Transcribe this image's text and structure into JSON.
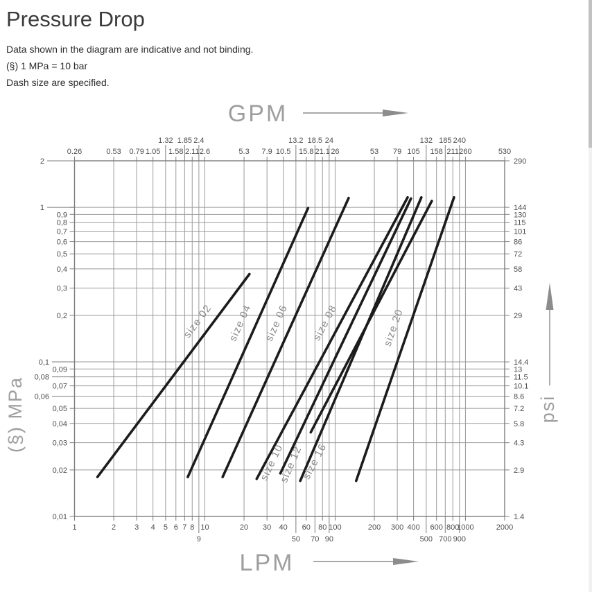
{
  "header": {
    "title": "Pressure Drop",
    "notes": [
      "Data shown in the diagram are indicative and not binding.",
      "(§) 1 MPa = 10 bar",
      "Dash size are specified."
    ]
  },
  "chart_data": {
    "type": "line",
    "x_scale": "log",
    "y_scale": "log",
    "x_range": [
      1,
      2000
    ],
    "y_range": [
      0.01,
      2
    ],
    "grid": true,
    "axes": {
      "bottom": {
        "label": "LPM",
        "ticks": [
          {
            "v": 1,
            "t": "1"
          },
          {
            "v": 2,
            "t": "2"
          },
          {
            "v": 3,
            "t": "3"
          },
          {
            "v": 4,
            "t": "4"
          },
          {
            "v": 5,
            "t": "5"
          },
          {
            "v": 6,
            "t": "6"
          },
          {
            "v": 7,
            "t": "7"
          },
          {
            "v": 8,
            "t": "8"
          },
          {
            "v": 9,
            "t": "9",
            "row": 1
          },
          {
            "v": 10,
            "t": "10"
          },
          {
            "v": 20,
            "t": "20"
          },
          {
            "v": 30,
            "t": "30"
          },
          {
            "v": 40,
            "t": "40"
          },
          {
            "v": 50,
            "t": "50",
            "row": 1
          },
          {
            "v": 60,
            "t": "60"
          },
          {
            "v": 70,
            "t": "70",
            "row": 1
          },
          {
            "v": 80,
            "t": "80"
          },
          {
            "v": 90,
            "t": "90",
            "row": 1
          },
          {
            "v": 100,
            "t": "100"
          },
          {
            "v": 200,
            "t": "200"
          },
          {
            "v": 300,
            "t": "300"
          },
          {
            "v": 400,
            "t": "400"
          },
          {
            "v": 500,
            "t": "500",
            "row": 1
          },
          {
            "v": 600,
            "t": "600"
          },
          {
            "v": 700,
            "t": "700",
            "row": 1
          },
          {
            "v": 800,
            "t": "800"
          },
          {
            "v": 900,
            "t": "900",
            "row": 1
          },
          {
            "v": 1000,
            "t": "1000"
          },
          {
            "v": 2000,
            "t": "2000"
          }
        ]
      },
      "top": {
        "label": "GPM",
        "ticks": [
          {
            "v": 1,
            "t": "0.26"
          },
          {
            "v": 2,
            "t": "0.53"
          },
          {
            "v": 3,
            "t": "0.79"
          },
          {
            "v": 4,
            "t": "1.05"
          },
          {
            "v": 5,
            "t": "1.32",
            "row": 1
          },
          {
            "v": 6,
            "t": "1.58"
          },
          {
            "v": 7,
            "t": "1.85",
            "row": 1
          },
          {
            "v": 8,
            "t": "2.11"
          },
          {
            "v": 9,
            "t": "2.4",
            "row": 1
          },
          {
            "v": 10,
            "t": "2.6"
          },
          {
            "v": 20,
            "t": "5.3"
          },
          {
            "v": 30,
            "t": "7.9"
          },
          {
            "v": 40,
            "t": "10.5"
          },
          {
            "v": 50,
            "t": "13.2",
            "row": 1
          },
          {
            "v": 60,
            "t": "15.8"
          },
          {
            "v": 70,
            "t": "18.5",
            "row": 1
          },
          {
            "v": 80,
            "t": "21.1"
          },
          {
            "v": 90,
            "t": "24",
            "row": 1
          },
          {
            "v": 100,
            "t": "26"
          },
          {
            "v": 200,
            "t": "53"
          },
          {
            "v": 300,
            "t": "79"
          },
          {
            "v": 400,
            "t": "105"
          },
          {
            "v": 500,
            "t": "132",
            "row": 1
          },
          {
            "v": 600,
            "t": "158"
          },
          {
            "v": 700,
            "t": "185",
            "row": 1
          },
          {
            "v": 800,
            "t": "211"
          },
          {
            "v": 900,
            "t": "240",
            "row": 1
          },
          {
            "v": 1000,
            "t": "260"
          },
          {
            "v": 2000,
            "t": "530"
          }
        ]
      },
      "left": {
        "label": "(§) MPa",
        "ticks": [
          {
            "v": 2,
            "t": "2",
            "leader": true,
            "far": true
          },
          {
            "v": 1,
            "t": "1",
            "leader": true,
            "far": true
          },
          {
            "v": 0.9,
            "t": "0,9"
          },
          {
            "v": 0.8,
            "t": "0,8"
          },
          {
            "v": 0.7,
            "t": "0,7"
          },
          {
            "v": 0.6,
            "t": "0,6"
          },
          {
            "v": 0.5,
            "t": "0,5"
          },
          {
            "v": 0.4,
            "t": "0,4"
          },
          {
            "v": 0.3,
            "t": "0,3"
          },
          {
            "v": 0.2,
            "t": "0,2"
          },
          {
            "v": 0.1,
            "t": "0,1",
            "leader": true
          },
          {
            "v": 0.09,
            "t": "0,09"
          },
          {
            "v": 0.08,
            "t": "0,08",
            "leader": true
          },
          {
            "v": 0.07,
            "t": "0,07"
          },
          {
            "v": 0.06,
            "t": "0,06",
            "leader": true
          },
          {
            "v": 0.05,
            "t": "0,05"
          },
          {
            "v": 0.04,
            "t": "0,04"
          },
          {
            "v": 0.03,
            "t": "0,03"
          },
          {
            "v": 0.02,
            "t": "0,02"
          },
          {
            "v": 0.01,
            "t": "0,01"
          }
        ]
      },
      "right": {
        "label": "psi",
        "ticks": [
          {
            "v": 2,
            "t": "290"
          },
          {
            "v": 1,
            "t": "144"
          },
          {
            "v": 0.9,
            "t": "130"
          },
          {
            "v": 0.8,
            "t": "115"
          },
          {
            "v": 0.7,
            "t": "101"
          },
          {
            "v": 0.6,
            "t": "86"
          },
          {
            "v": 0.5,
            "t": "72"
          },
          {
            "v": 0.4,
            "t": "58"
          },
          {
            "v": 0.3,
            "t": "43"
          },
          {
            "v": 0.2,
            "t": "29"
          },
          {
            "v": 0.1,
            "t": "14.4"
          },
          {
            "v": 0.09,
            "t": "13"
          },
          {
            "v": 0.08,
            "t": "11.5"
          },
          {
            "v": 0.07,
            "t": "10.1"
          },
          {
            "v": 0.06,
            "t": "8.6"
          },
          {
            "v": 0.05,
            "t": "7.2"
          },
          {
            "v": 0.04,
            "t": "5.8"
          },
          {
            "v": 0.03,
            "t": "4.3"
          },
          {
            "v": 0.02,
            "t": "2.9"
          },
          {
            "v": 0.01,
            "t": "1.4"
          }
        ]
      }
    },
    "series": [
      {
        "name": "size 02",
        "points": [
          [
            1.5,
            0.018
          ],
          [
            22,
            0.37
          ]
        ],
        "label_at": [
          9.2,
          0.178
        ]
      },
      {
        "name": "size 04",
        "points": [
          [
            7.4,
            0.018
          ],
          [
            62,
            0.99
          ]
        ],
        "label_at": [
          19.7,
          0.175
        ]
      },
      {
        "name": "size 06",
        "points": [
          [
            13.7,
            0.018
          ],
          [
            127,
            1.15
          ]
        ],
        "label_at": [
          37.4,
          0.175
        ]
      },
      {
        "name": "size 08",
        "points": [
          [
            25,
            0.0175
          ],
          [
            360,
            1.16
          ]
        ],
        "label_at": [
          88,
          0.175
        ]
      },
      {
        "name": "size 10",
        "points": [
          [
            38,
            0.019
          ],
          [
            382,
            1.14
          ]
        ],
        "label_at": [
          34.3,
          0.0219
        ]
      },
      {
        "name": "size 12",
        "points": [
          [
            54,
            0.017
          ],
          [
            459,
            1.16
          ]
        ],
        "label_at": [
          48.3,
          0.0213
        ]
      },
      {
        "name": "size 16",
        "points": [
          [
            65,
            0.035
          ],
          [
            552,
            1.1
          ]
        ],
        "label_at": [
          73.3,
          0.0222
        ]
      },
      {
        "name": "size 20",
        "points": [
          [
            145,
            0.017
          ],
          [
            817,
            1.16
          ]
        ],
        "label_at": [
          296,
          0.164
        ]
      }
    ],
    "colors": {
      "line": "#1c1c1c",
      "grid": "#9a9a9a",
      "frame": "#7d7d7d",
      "tick_text": "#4d4d4d",
      "axis_title": "#9e9e9e",
      "series_label": "#8a8a8a",
      "arrow": "#8c8c8c"
    }
  }
}
